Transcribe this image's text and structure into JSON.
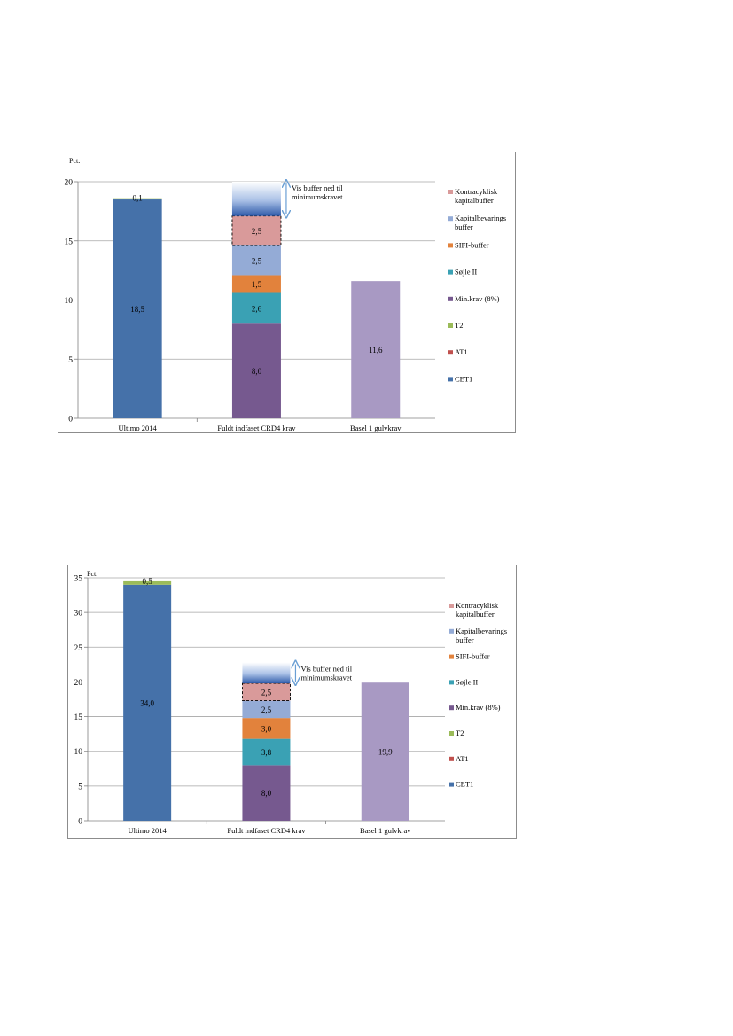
{
  "colors": {
    "CET1": "#4571a9",
    "AT1": "#c0504d",
    "T2": "#9bbb59",
    "min_krav": "#76598f",
    "sojle_ii": "#3aa1b4",
    "sifi": "#e2823c",
    "kapitalbevarings": "#94abd6",
    "kontracyklisk": "#d99a9a",
    "basel": "#a899c3",
    "arrow": "#6a9fd4",
    "grid": "#a6a6a6"
  },
  "legend": [
    {
      "key": "kontracyklisk",
      "label": "Kontracyklisk kapitalbuffer",
      "lines": [
        "Kontracyklisk",
        "kapitalbuffer"
      ]
    },
    {
      "key": "kapitalbevarings",
      "label": "Kapitalbevarings buffer",
      "lines": [
        "Kapitalbevarings",
        "buffer"
      ]
    },
    {
      "key": "sifi",
      "label": "SIFI-buffer",
      "lines": [
        "SIFI-buffer"
      ]
    },
    {
      "key": "sojle_ii",
      "label": "Søjle II",
      "lines": [
        "Søjle II"
      ]
    },
    {
      "key": "min_krav",
      "label": "Min.krav (8%)",
      "lines": [
        "Min.krav (8%)"
      ]
    },
    {
      "key": "T2",
      "label": "T2",
      "lines": [
        "T2"
      ]
    },
    {
      "key": "AT1",
      "label": "AT1",
      "lines": [
        "AT1"
      ]
    },
    {
      "key": "CET1",
      "label": "CET1",
      "lines": [
        "CET1"
      ]
    }
  ],
  "chart_data": [
    {
      "type": "bar",
      "stacked": true,
      "ylabel": "Pct.",
      "ylim": [
        0,
        20
      ],
      "yticks": [
        0,
        5,
        10,
        15,
        20
      ],
      "grid": true,
      "legend_position": "right",
      "categories": [
        "Ultimo 2014",
        "Fuldt indfaset CRD4 krav",
        "Basel 1 gulvkrav"
      ],
      "series": [
        {
          "name": "CET1",
          "values": [
            18.5,
            0,
            0
          ],
          "labels": [
            "18,5",
            "",
            ""
          ]
        },
        {
          "name": "AT1",
          "values": [
            0,
            0,
            0
          ],
          "labels": [
            "",
            "",
            ""
          ]
        },
        {
          "name": "T2",
          "values": [
            0.1,
            0,
            0
          ],
          "labels": [
            "0,1",
            "",
            ""
          ]
        },
        {
          "name": "Min.krav (8%)",
          "values": [
            0,
            8.0,
            0
          ],
          "labels": [
            "",
            "8,0",
            ""
          ]
        },
        {
          "name": "Søjle II",
          "values": [
            0,
            2.6,
            0
          ],
          "labels": [
            "",
            "2,6",
            ""
          ]
        },
        {
          "name": "SIFI-buffer",
          "values": [
            0,
            1.5,
            0
          ],
          "labels": [
            "",
            "1,5",
            ""
          ]
        },
        {
          "name": "Kapitalbevarings buffer",
          "values": [
            0,
            2.5,
            0
          ],
          "labels": [
            "",
            "2,5",
            ""
          ]
        },
        {
          "name": "Kontracyklisk kapitalbuffer",
          "values": [
            0,
            2.5,
            0
          ],
          "labels": [
            "",
            "2,5",
            ""
          ]
        },
        {
          "name": "Basel 1 gulvkrav",
          "values": [
            0,
            0,
            11.6
          ],
          "labels": [
            "",
            "",
            "11,6"
          ]
        }
      ],
      "annotation": {
        "text": "Vis buffer ned til minimumskravet",
        "lines": [
          "Vis buffer ned til",
          "minimumskravet"
        ],
        "top_value": 20.0
      }
    },
    {
      "type": "bar",
      "stacked": true,
      "ylabel": "Pct.",
      "ylim": [
        0,
        35
      ],
      "yticks": [
        0,
        5,
        10,
        15,
        20,
        25,
        30,
        35
      ],
      "grid": true,
      "legend_position": "right",
      "categories": [
        "Ultimo 2014",
        "Fuldt indfaset CRD4 krav",
        "Basel 1 gulvkrav"
      ],
      "series": [
        {
          "name": "CET1",
          "values": [
            34.0,
            0,
            0
          ],
          "labels": [
            "34,0",
            "",
            ""
          ]
        },
        {
          "name": "AT1",
          "values": [
            0,
            0,
            0
          ],
          "labels": [
            "",
            "",
            ""
          ]
        },
        {
          "name": "T2",
          "values": [
            0.5,
            0,
            0
          ],
          "labels": [
            "0,5",
            "",
            ""
          ]
        },
        {
          "name": "Min.krav (8%)",
          "values": [
            0,
            8.0,
            0
          ],
          "labels": [
            "",
            "8,0",
            ""
          ]
        },
        {
          "name": "Søjle II",
          "values": [
            0,
            3.8,
            0
          ],
          "labels": [
            "",
            "3,8",
            ""
          ]
        },
        {
          "name": "SIFI-buffer",
          "values": [
            0,
            3.0,
            0
          ],
          "labels": [
            "",
            "3,0",
            ""
          ]
        },
        {
          "name": "Kapitalbevarings buffer",
          "values": [
            0,
            2.5,
            0
          ],
          "labels": [
            "",
            "2,5",
            ""
          ]
        },
        {
          "name": "Kontracyklisk kapitalbuffer",
          "values": [
            0,
            2.5,
            0
          ],
          "labels": [
            "",
            "2,5",
            ""
          ]
        },
        {
          "name": "Basel 1 gulvkrav",
          "values": [
            0,
            0,
            19.9
          ],
          "labels": [
            "",
            "",
            "19,9"
          ]
        }
      ],
      "annotation": {
        "text": "Vis buffer ned til minimumskravet",
        "lines": [
          "Vis buffer ned til",
          "minimumskravet"
        ],
        "top_value": 22.8
      }
    }
  ]
}
